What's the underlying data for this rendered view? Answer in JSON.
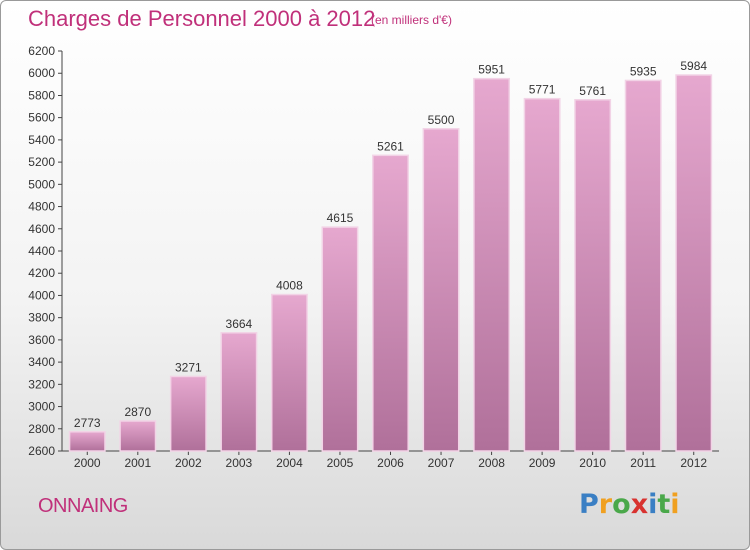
{
  "title": "Charges de Personnel 2000 à 2012",
  "unit_note": "(en milliers d'€)",
  "city": "ONNAING",
  "brand": {
    "letters": [
      "P",
      "r",
      "o",
      "x",
      "i",
      "t",
      "i"
    ],
    "colors": [
      "#3a7fc4",
      "#f0a020",
      "#4aa84a",
      "#d8322f",
      "#3a7fc4",
      "#4aa84a",
      "#f0a020"
    ]
  },
  "colors": {
    "bar_top": "#e6a8cf",
    "bar_bottom": "#b0709a",
    "accent": "#c0307a"
  },
  "chart_data": {
    "type": "bar",
    "title": "Charges de Personnel 2000 à 2012",
    "xlabel": "",
    "ylabel": "",
    "categories": [
      "2000",
      "2001",
      "2002",
      "2003",
      "2004",
      "2005",
      "2006",
      "2007",
      "2008",
      "2009",
      "2010",
      "2011",
      "2012"
    ],
    "values": [
      2773,
      2870,
      3271,
      3664,
      4008,
      4615,
      5261,
      5500,
      5951,
      5771,
      5761,
      5935,
      5984
    ],
    "ylim": [
      2600,
      6200
    ],
    "yticks": [
      2600,
      2800,
      3000,
      3200,
      3400,
      3600,
      3800,
      4000,
      4200,
      4400,
      4600,
      4800,
      5000,
      5200,
      5400,
      5600,
      5800,
      6000,
      6200
    ],
    "grid": false
  }
}
